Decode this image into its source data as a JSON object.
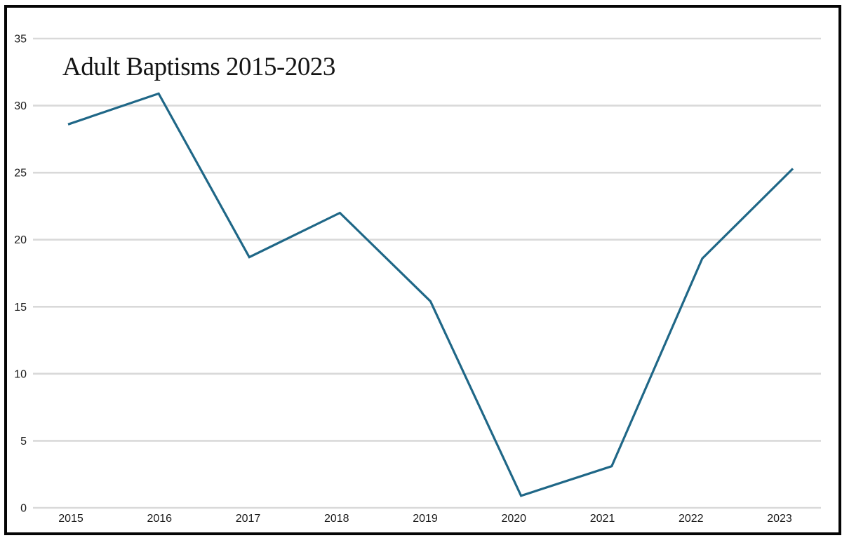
{
  "chart_data": {
    "type": "line",
    "title": "Adult Baptisms 2015-2023",
    "categories": [
      "2015",
      "2016",
      "2017",
      "2018",
      "2019",
      "2020",
      "2021",
      "2022",
      "2023"
    ],
    "values": [
      28.6,
      30.9,
      18.7,
      22,
      15.4,
      0.9,
      3.1,
      18.6,
      25.3
    ],
    "y_ticks": [
      0,
      5,
      10,
      15,
      20,
      25,
      30,
      35
    ],
    "ylim": [
      0,
      35
    ],
    "xlabel": "",
    "ylabel": "",
    "grid": "horizontal-only",
    "legend": "none",
    "series_name": "Adult Baptisms",
    "colors": {
      "line": "#1f6787",
      "grid": "#d9d9d9",
      "tick_text": "#1a1a1a",
      "title_text": "#141414",
      "frame": "#050505",
      "background": "#ffffff"
    }
  }
}
